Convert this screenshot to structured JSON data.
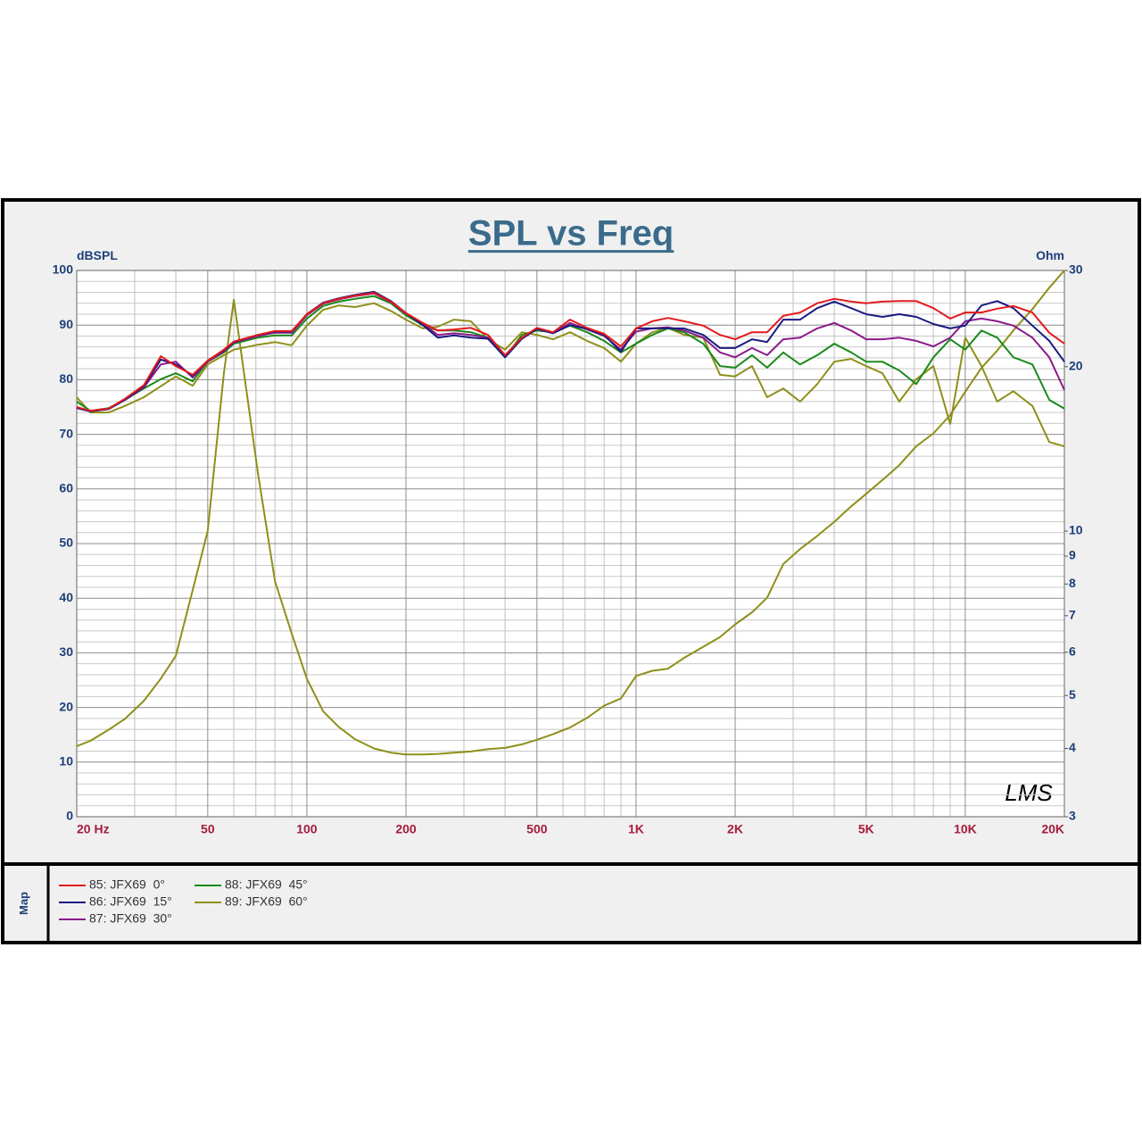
{
  "chart_data": {
    "type": "line",
    "title": "SPL vs Freq",
    "ylabel": "dBSPL",
    "y2label": "Ohm",
    "legend_title": "Map",
    "watermark": "LMS",
    "x": [
      20,
      22,
      25,
      28,
      32,
      36,
      40,
      45,
      50,
      56,
      60,
      71,
      80,
      90,
      100,
      112,
      125,
      140,
      160,
      180,
      200,
      225,
      250,
      280,
      315,
      355,
      400,
      450,
      500,
      560,
      630,
      710,
      800,
      900,
      1000,
      1120,
      1250,
      1400,
      1600,
      1800,
      2000,
      2250,
      2500,
      2800,
      3150,
      3550,
      4000,
      4500,
      5000,
      5600,
      6300,
      7100,
      8000,
      9000,
      10000,
      11200,
      12500,
      14000,
      16000,
      18000,
      20000
    ],
    "xlog": true,
    "xlim": [
      20,
      20000
    ],
    "xticks": [
      {
        "value": 20,
        "label": "20  Hz"
      },
      50,
      100,
      200,
      500,
      {
        "value": 1000,
        "label": "1K"
      },
      {
        "value": 2000,
        "label": "2K"
      },
      {
        "value": 5000,
        "label": "5K"
      },
      {
        "value": 10000,
        "label": "10K"
      },
      {
        "value": 20000,
        "label": "20K"
      }
    ],
    "xminorticks": [
      30,
      40,
      60,
      70,
      80,
      90,
      300,
      400,
      600,
      700,
      800,
      900,
      3000,
      4000,
      6000,
      7000,
      8000,
      9000
    ],
    "ylim": [
      0,
      100
    ],
    "yticks": [
      0,
      10,
      20,
      30,
      40,
      50,
      60,
      70,
      80,
      90,
      100
    ],
    "yminorticks": [
      2,
      4,
      6,
      8,
      12,
      14,
      16,
      18,
      22,
      24,
      26,
      28,
      32,
      34,
      36,
      38,
      42,
      44,
      46,
      48,
      52,
      54,
      56,
      58,
      62,
      64,
      66,
      68,
      72,
      74,
      76,
      78,
      82,
      84,
      86,
      88,
      92,
      94,
      96,
      98
    ],
    "y2log": true,
    "y2lim": [
      3,
      30
    ],
    "y2ticks": [
      3,
      4,
      5,
      6,
      7,
      8,
      9,
      10,
      20,
      30
    ],
    "grid": true,
    "series": [
      {
        "name": "85: JFX69  0°",
        "color": "#e41a1c",
        "values": [
          75,
          74.3,
          74.7,
          76.5,
          79,
          84.3,
          82.5,
          80.9,
          83.5,
          85.5,
          87,
          88.2,
          88.9,
          88.9,
          92,
          94,
          94.8,
          95.4,
          95.9,
          94.3,
          92.2,
          90.4,
          89,
          89.2,
          89.5,
          88.2,
          84.5,
          87.7,
          89.5,
          88.7,
          91,
          89.5,
          88.4,
          86.1,
          89.4,
          90.7,
          91.3,
          90.7,
          89.9,
          88.2,
          87.4,
          88.7,
          88.7,
          91.7,
          92.3,
          94,
          94.8,
          94.3,
          94,
          94.3,
          94.4,
          94.4,
          93.1,
          91.2,
          92.3,
          92.3,
          93,
          93.5,
          92.3,
          88.6,
          86.6
        ]
      },
      {
        "name": "86: JFX69  15°",
        "color": "#1a1a80",
        "values": [
          74.8,
          74.2,
          74.6,
          76.3,
          78.8,
          83.7,
          82.8,
          80.7,
          83.5,
          85.4,
          86.9,
          88.2,
          88.8,
          88.8,
          92,
          94.1,
          94.9,
          95.5,
          96.1,
          94.4,
          92.2,
          90,
          87.7,
          88.1,
          87.7,
          87.5,
          84.1,
          87.5,
          89.3,
          88.5,
          90,
          89.3,
          88.2,
          85.1,
          89.4,
          89.4,
          89.4,
          89.4,
          88.2,
          85.8,
          85.8,
          87.4,
          86.9,
          91,
          91,
          93.1,
          94.3,
          93.1,
          92,
          91.5,
          92,
          91.5,
          90.2,
          89.4,
          89.9,
          93.6,
          94.4,
          93.1,
          89.9,
          87.1,
          83.3
        ]
      },
      {
        "name": "87: JFX69  30°",
        "color": "#8b1a8b",
        "values": [
          74.9,
          74.3,
          74.7,
          76.3,
          78.6,
          82.8,
          83.3,
          80.4,
          83.3,
          85.2,
          86.8,
          88,
          88.6,
          88.6,
          91.8,
          93.9,
          94.7,
          95.3,
          95.8,
          94.2,
          92.1,
          90.2,
          88.2,
          88.5,
          88.2,
          87.7,
          84.2,
          87.6,
          89.3,
          88.6,
          90.4,
          89.2,
          88,
          85.5,
          88.8,
          89.4,
          89.6,
          89,
          87.7,
          85,
          84.1,
          85.8,
          84.5,
          87.4,
          87.7,
          89.4,
          90.4,
          89,
          87.4,
          87.4,
          87.7,
          87.1,
          86.1,
          87.7,
          90.7,
          91.2,
          90.7,
          89.9,
          87.7,
          84.1,
          78.1
        ]
      },
      {
        "name": "88: JFX69  45°",
        "color": "#1a8a1a",
        "values": [
          76,
          74.3,
          74.8,
          76.3,
          78.4,
          80.1,
          81.2,
          79.7,
          83.3,
          85,
          86.6,
          87.7,
          88.1,
          88.1,
          91.2,
          93.5,
          94.3,
          94.8,
          95.3,
          94,
          91.8,
          90,
          89,
          89,
          88.7,
          87.7,
          84.1,
          88.2,
          89,
          88.7,
          89.9,
          88.7,
          87.1,
          85,
          86.6,
          88.2,
          89.4,
          88.7,
          86.6,
          82.5,
          82.2,
          84.5,
          82.2,
          85,
          82.8,
          84.5,
          86.6,
          85,
          83.3,
          83.3,
          81.7,
          79.2,
          84.1,
          87.4,
          85.5,
          89,
          87.7,
          84.1,
          82.8,
          76.3,
          74.7
        ]
      },
      {
        "name": "89: JFX69  60°",
        "color": "#8f8f1a",
        "values": [
          76.8,
          74,
          74,
          75.2,
          76.8,
          78.8,
          80.6,
          78.9,
          82.8,
          84.5,
          85.5,
          86.4,
          86.9,
          86.3,
          89.9,
          92.8,
          93.6,
          93.3,
          94,
          92.6,
          91,
          89.4,
          89.7,
          91,
          90.7,
          87.4,
          85.5,
          88.7,
          88.2,
          87.4,
          88.7,
          87.1,
          85.8,
          83.3,
          86.6,
          88.7,
          89.5,
          88.2,
          87.7,
          80.9,
          80.6,
          82.5,
          76.8,
          78.4,
          76,
          79.2,
          83.3,
          83.8,
          82.5,
          81.2,
          76,
          80.1,
          82.5,
          71.9,
          87.7,
          82.5,
          76,
          77.9,
          75.2,
          68.6,
          67.8
        ]
      },
      {
        "color": "#8f8f1a",
        "axis": "y2",
        "values": [
          4.04,
          4.13,
          4.33,
          4.53,
          4.89,
          5.37,
          5.91,
          7.8,
          10,
          19.5,
          26.5,
          12.8,
          8.1,
          6.49,
          5.37,
          4.68,
          4.38,
          4.16,
          4,
          3.93,
          3.9,
          3.9,
          3.91,
          3.93,
          3.95,
          3.99,
          4.01,
          4.07,
          4.15,
          4.25,
          4.37,
          4.55,
          4.79,
          4.94,
          5.43,
          5.55,
          5.6,
          5.86,
          6.14,
          6.4,
          6.75,
          7.1,
          7.55,
          8.7,
          9.27,
          9.8,
          10.4,
          11.1,
          11.7,
          12.4,
          13.2,
          14.3,
          15.1,
          16.3,
          18,
          19.9,
          21.4,
          23.3,
          25.5,
          27.9,
          30
        ]
      }
    ]
  }
}
